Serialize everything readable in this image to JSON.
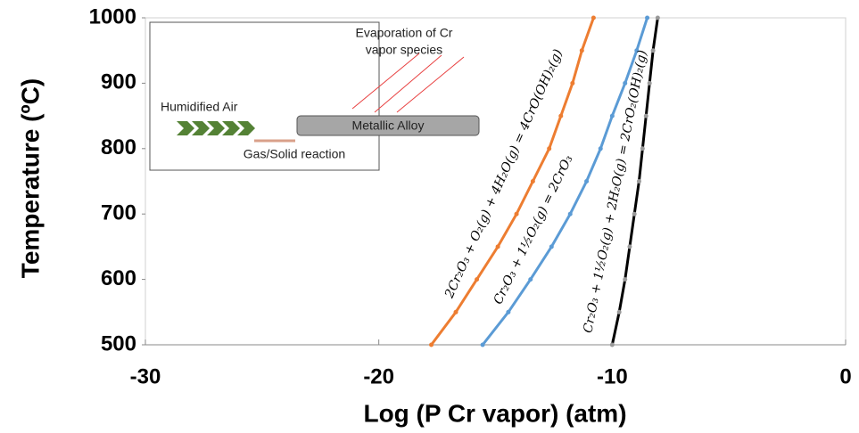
{
  "chart_data": {
    "type": "line",
    "x_label": "Log (P Cr vapor) (atm)",
    "y_label": "Temperature (ºC)",
    "xlim": [
      -30,
      0
    ],
    "xticks": [
      -30,
      -20,
      -10,
      0
    ],
    "ylim": [
      500,
      1000
    ],
    "yticks": [
      500,
      600,
      700,
      800,
      900,
      1000
    ],
    "grid": false,
    "series": [
      {
        "name": "2Cr₂O₃ + O₂(g) + 4H₂O(g) = 4CrO(OH)₂(g)",
        "color": "#ed7d31",
        "x": [
          -17.75,
          -16.7,
          -15.8,
          -14.9,
          -14.1,
          -13.4,
          -12.7,
          -12.2,
          -11.7,
          -11.3,
          -10.8
        ],
        "values": [
          500,
          550,
          600,
          650,
          700,
          750,
          800,
          850,
          900,
          950,
          1000
        ]
      },
      {
        "name": "Cr₂O₃ + 1½O₂(g) = 2CrO₃",
        "color": "#5b9bd5",
        "x": [
          -15.55,
          -14.45,
          -13.5,
          -12.6,
          -11.8,
          -11.1,
          -10.5,
          -10.0,
          -9.45,
          -8.95,
          -8.5
        ],
        "values": [
          500,
          550,
          600,
          650,
          700,
          750,
          800,
          850,
          900,
          950,
          1000
        ]
      },
      {
        "name": "Cr₂O₃ + 1½O₂(g) + 2H₂O(g) = 2CrO₂(OH)₂(g)",
        "color": "#000000",
        "x": [
          -10.0,
          -9.7,
          -9.45,
          -9.25,
          -9.05,
          -8.85,
          -8.7,
          -8.55,
          -8.4,
          -8.25,
          -8.05
        ],
        "values": [
          500,
          550,
          600,
          650,
          700,
          750,
          800,
          850,
          900,
          950,
          1000
        ]
      }
    ]
  },
  "inset": {
    "evaporation": [
      "Evaporation of Cr",
      "vapor species"
    ],
    "air": "Humidified Air",
    "alloy": "Metallic Alloy",
    "reaction": "Gas/Solid reaction"
  }
}
